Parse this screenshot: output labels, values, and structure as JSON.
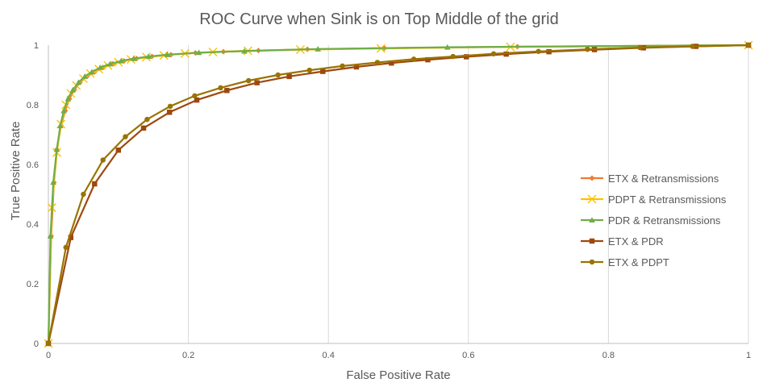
{
  "chart_data": {
    "type": "line",
    "title": "ROC Curve when Sink is on Top Middle of the grid",
    "xlabel": "False Positive Rate",
    "ylabel": "True Positive Rate",
    "xlim": [
      0,
      1
    ],
    "ylim": [
      0,
      1
    ],
    "x_ticks": [
      "0",
      "0.2",
      "0.4",
      "0.6",
      "0.8",
      "1"
    ],
    "y_ticks": [
      "0",
      "0.2",
      "0.4",
      "0.6",
      "0.8",
      "1"
    ],
    "grid": "vertical",
    "legend_position": "right",
    "series": [
      {
        "name": "ETX & Retransmissions",
        "color": "#ED7D31",
        "marker": "diamond",
        "points": [
          [
            0,
            0
          ],
          [
            0.004,
            0.36
          ],
          [
            0.008,
            0.54
          ],
          [
            0.012,
            0.65
          ],
          [
            0.018,
            0.73
          ],
          [
            0.024,
            0.78
          ],
          [
            0.03,
            0.82
          ],
          [
            0.037,
            0.85
          ],
          [
            0.045,
            0.875
          ],
          [
            0.055,
            0.895
          ],
          [
            0.066,
            0.91
          ],
          [
            0.078,
            0.925
          ],
          [
            0.092,
            0.937
          ],
          [
            0.108,
            0.947
          ],
          [
            0.126,
            0.955
          ],
          [
            0.148,
            0.962
          ],
          [
            0.175,
            0.968
          ],
          [
            0.21,
            0.974
          ],
          [
            0.25,
            0.978
          ],
          [
            0.3,
            0.982
          ],
          [
            0.37,
            0.986
          ],
          [
            0.48,
            0.99
          ],
          [
            0.67,
            0.995
          ],
          [
            1,
            1
          ]
        ]
      },
      {
        "name": "PDPT & Retransmissions",
        "color": "#FFC000",
        "marker": "x",
        "points": [
          [
            0,
            0
          ],
          [
            0.005,
            0.455
          ],
          [
            0.012,
            0.64
          ],
          [
            0.018,
            0.735
          ],
          [
            0.025,
            0.8
          ],
          [
            0.032,
            0.838
          ],
          [
            0.04,
            0.865
          ],
          [
            0.05,
            0.888
          ],
          [
            0.06,
            0.905
          ],
          [
            0.072,
            0.92
          ],
          [
            0.085,
            0.932
          ],
          [
            0.1,
            0.943
          ],
          [
            0.118,
            0.952
          ],
          [
            0.14,
            0.96
          ],
          [
            0.165,
            0.966
          ],
          [
            0.195,
            0.972
          ],
          [
            0.235,
            0.977
          ],
          [
            0.285,
            0.981
          ],
          [
            0.36,
            0.985
          ],
          [
            0.475,
            0.989
          ],
          [
            0.66,
            0.994
          ],
          [
            1,
            1
          ]
        ]
      },
      {
        "name": "PDR & Retransmissions",
        "color": "#70AD47",
        "marker": "triangle",
        "points": [
          [
            0,
            0
          ],
          [
            0.003,
            0.36
          ],
          [
            0.007,
            0.54
          ],
          [
            0.012,
            0.65
          ],
          [
            0.017,
            0.73
          ],
          [
            0.022,
            0.78
          ],
          [
            0.028,
            0.82
          ],
          [
            0.035,
            0.85
          ],
          [
            0.043,
            0.875
          ],
          [
            0.052,
            0.895
          ],
          [
            0.062,
            0.91
          ],
          [
            0.074,
            0.925
          ],
          [
            0.088,
            0.937
          ],
          [
            0.104,
            0.947
          ],
          [
            0.122,
            0.955
          ],
          [
            0.143,
            0.962
          ],
          [
            0.17,
            0.968
          ],
          [
            0.215,
            0.975
          ],
          [
            0.28,
            0.98
          ],
          [
            0.385,
            0.987
          ],
          [
            0.57,
            0.993
          ],
          [
            1,
            1
          ]
        ]
      },
      {
        "name": "ETX & PDR",
        "color": "#9E480E",
        "marker": "square",
        "points": [
          [
            0,
            0
          ],
          [
            0.032,
            0.355
          ],
          [
            0.066,
            0.535
          ],
          [
            0.1,
            0.648
          ],
          [
            0.136,
            0.722
          ],
          [
            0.173,
            0.775
          ],
          [
            0.212,
            0.816
          ],
          [
            0.255,
            0.848
          ],
          [
            0.298,
            0.874
          ],
          [
            0.344,
            0.895
          ],
          [
            0.392,
            0.912
          ],
          [
            0.44,
            0.927
          ],
          [
            0.49,
            0.94
          ],
          [
            0.542,
            0.951
          ],
          [
            0.597,
            0.961
          ],
          [
            0.654,
            0.97
          ],
          [
            0.715,
            0.978
          ],
          [
            0.78,
            0.985
          ],
          [
            0.85,
            0.991
          ],
          [
            0.925,
            0.996
          ],
          [
            1,
            1
          ]
        ]
      },
      {
        "name": "ETX & PDPT",
        "color": "#997300",
        "marker": "circle",
        "points": [
          [
            0,
            0
          ],
          [
            0.025,
            0.322
          ],
          [
            0.05,
            0.5
          ],
          [
            0.078,
            0.615
          ],
          [
            0.11,
            0.693
          ],
          [
            0.141,
            0.751
          ],
          [
            0.174,
            0.795
          ],
          [
            0.209,
            0.83
          ],
          [
            0.246,
            0.857
          ],
          [
            0.286,
            0.881
          ],
          [
            0.328,
            0.9
          ],
          [
            0.373,
            0.916
          ],
          [
            0.42,
            0.93
          ],
          [
            0.47,
            0.942
          ],
          [
            0.522,
            0.953
          ],
          [
            0.578,
            0.962
          ],
          [
            0.636,
            0.971
          ],
          [
            0.7,
            0.979
          ],
          [
            0.77,
            0.986
          ],
          [
            0.845,
            0.992
          ],
          [
            0.92,
            0.996
          ],
          [
            1,
            1
          ]
        ]
      }
    ]
  }
}
